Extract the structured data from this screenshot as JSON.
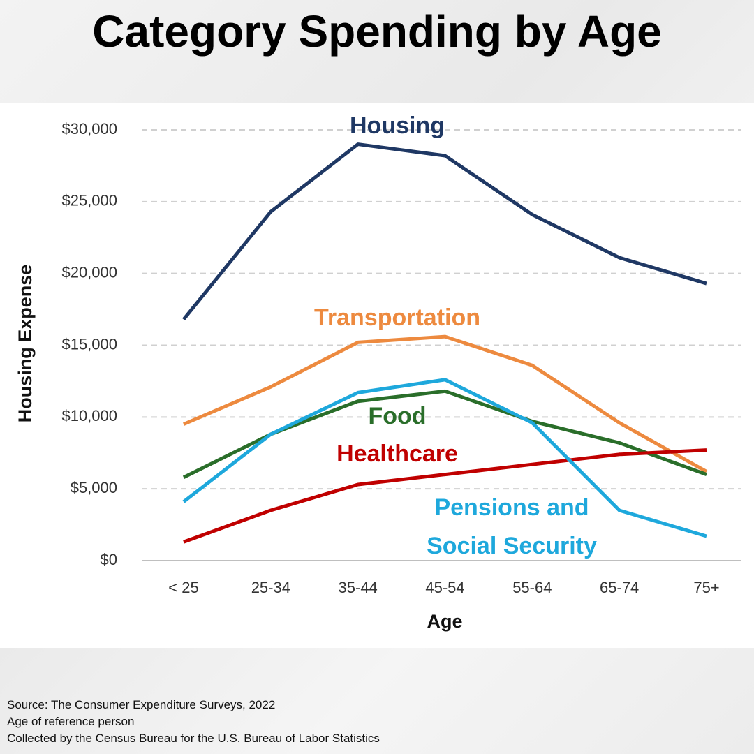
{
  "chart_data": {
    "type": "line",
    "title": "Category Spending by Age",
    "x_label": "Age",
    "y_label": "Housing Expense",
    "categories": [
      "< 25",
      "25-34",
      "35-44",
      "45-54",
      "55-64",
      "65-74",
      "75+"
    ],
    "series": [
      {
        "name": "Housing",
        "color": "#1f3864",
        "values": [
          16800,
          24300,
          29000,
          28200,
          24100,
          21100,
          19300
        ]
      },
      {
        "name": "Transportation",
        "color": "#ed8a3f",
        "values": [
          9500,
          12100,
          15200,
          15600,
          13600,
          9600,
          6200
        ]
      },
      {
        "name": "Food",
        "color": "#2a6e2a",
        "values": [
          5800,
          8800,
          11100,
          11800,
          9700,
          8200,
          6000
        ]
      },
      {
        "name": "Healthcare",
        "color": "#c00000",
        "values": [
          1300,
          3500,
          5300,
          6000,
          6700,
          7400,
          7700
        ]
      },
      {
        "name": "Pensions and Social Security",
        "color": "#1ea8dc",
        "values": [
          4100,
          8800,
          11700,
          12600,
          9600,
          3500,
          1700
        ]
      }
    ],
    "ylim": [
      0,
      30000
    ],
    "yticks": [
      {
        "value": 0,
        "label": "$0"
      },
      {
        "value": 5000,
        "label": "$5,000"
      },
      {
        "value": 10000,
        "label": "$10,000"
      },
      {
        "value": 15000,
        "label": "$15,000"
      },
      {
        "value": 20000,
        "label": "$20,000"
      },
      {
        "value": 25000,
        "label": "$25,000"
      },
      {
        "value": 30000,
        "label": "$30,000"
      }
    ],
    "grid": true,
    "notes": [
      "Source: The Consumer Expenditure Surveys, 2022",
      "Age of reference person",
      "Collected by the Census Bureau for the U.S. Bureau of Labor Statistics"
    ]
  }
}
